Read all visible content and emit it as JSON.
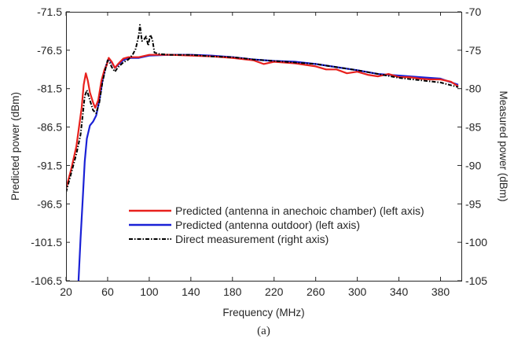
{
  "chart_data": {
    "type": "line",
    "xlabel": "Frequency (MHz)",
    "ylabel_left": "Predicted power (dBm)",
    "ylabel_right": "Measured power (dBm)",
    "caption": "(a)",
    "xlim": [
      20,
      400
    ],
    "ylim_left": [
      -106.5,
      -71.5
    ],
    "ylim_right": [
      -105,
      -70
    ],
    "x_ticks": [
      "20",
      "60",
      "100",
      "140",
      "180",
      "220",
      "260",
      "300",
      "340",
      "380"
    ],
    "y_ticks_left": [
      "-71.5",
      "-76.5",
      "-81.5",
      "-86.5",
      "-91.5",
      "-96.5",
      "-101.5",
      "-106.5"
    ],
    "y_ticks_right": [
      "-70",
      "-75",
      "-80",
      "-85",
      "-90",
      "-95",
      "-100",
      "-105"
    ],
    "grid": false,
    "legend_position": "bottom-right",
    "series": [
      {
        "name": "Predicted (antenna in anechoic chamber) (left axis)",
        "axis": "left",
        "color": "#e8211d",
        "style": "solid",
        "points": [
          [
            20,
            -94.5
          ],
          [
            25,
            -92.0
          ],
          [
            30,
            -89.0
          ],
          [
            33,
            -86.0
          ],
          [
            35,
            -84.0
          ],
          [
            37,
            -81.0
          ],
          [
            39,
            -79.5
          ],
          [
            41,
            -80.5
          ],
          [
            43,
            -82.0
          ],
          [
            46,
            -83.3
          ],
          [
            48,
            -84.0
          ],
          [
            51,
            -83.0
          ],
          [
            54,
            -80.5
          ],
          [
            57,
            -79.0
          ],
          [
            59,
            -78.5
          ],
          [
            61,
            -77.5
          ],
          [
            64,
            -78.0
          ],
          [
            67,
            -78.8
          ],
          [
            70,
            -78.3
          ],
          [
            75,
            -77.6
          ],
          [
            80,
            -77.4
          ],
          [
            90,
            -77.4
          ],
          [
            100,
            -77.1
          ],
          [
            120,
            -77.1
          ],
          [
            140,
            -77.2
          ],
          [
            160,
            -77.3
          ],
          [
            180,
            -77.5
          ],
          [
            200,
            -77.8
          ],
          [
            210,
            -78.3
          ],
          [
            220,
            -78.0
          ],
          [
            240,
            -78.2
          ],
          [
            260,
            -78.6
          ],
          [
            270,
            -79.0
          ],
          [
            280,
            -79.0
          ],
          [
            290,
            -79.5
          ],
          [
            300,
            -79.3
          ],
          [
            310,
            -79.7
          ],
          [
            320,
            -79.9
          ],
          [
            330,
            -79.6
          ],
          [
            340,
            -80.0
          ],
          [
            350,
            -80.0
          ],
          [
            360,
            -80.2
          ],
          [
            370,
            -80.3
          ],
          [
            380,
            -80.3
          ],
          [
            390,
            -80.6
          ],
          [
            397,
            -81.2
          ]
        ]
      },
      {
        "name": "Predicted (antenna outdoor) (left axis)",
        "axis": "left",
        "color": "#1a21d6",
        "style": "solid",
        "points": [
          [
            32,
            -106.5
          ],
          [
            34,
            -101.0
          ],
          [
            36,
            -96.0
          ],
          [
            38,
            -91.0
          ],
          [
            40,
            -88.0
          ],
          [
            43,
            -86.3
          ],
          [
            46,
            -85.8
          ],
          [
            49,
            -85.0
          ],
          [
            52,
            -83.0
          ],
          [
            55,
            -80.5
          ],
          [
            58,
            -78.7
          ],
          [
            61,
            -77.6
          ],
          [
            64,
            -78.1
          ],
          [
            67,
            -78.8
          ],
          [
            70,
            -78.4
          ],
          [
            75,
            -77.8
          ],
          [
            80,
            -77.5
          ],
          [
            90,
            -77.5
          ],
          [
            100,
            -77.2
          ],
          [
            120,
            -77.1
          ],
          [
            140,
            -77.1
          ],
          [
            160,
            -77.2
          ],
          [
            180,
            -77.4
          ],
          [
            200,
            -77.7
          ],
          [
            220,
            -77.9
          ],
          [
            240,
            -78.0
          ],
          [
            260,
            -78.3
          ],
          [
            280,
            -78.7
          ],
          [
            300,
            -79.1
          ],
          [
            320,
            -79.6
          ],
          [
            340,
            -79.8
          ],
          [
            360,
            -80.0
          ],
          [
            380,
            -80.2
          ],
          [
            397,
            -81.0
          ]
        ]
      },
      {
        "name": "Direct measurement (right axis)",
        "axis": "right",
        "color": "#000000",
        "style": "dashed",
        "points": [
          [
            20,
            -93.5
          ],
          [
            25,
            -91.0
          ],
          [
            30,
            -88.5
          ],
          [
            34,
            -86.0
          ],
          [
            36,
            -83.5
          ],
          [
            38,
            -81.0
          ],
          [
            40,
            -80.2
          ],
          [
            43,
            -81.5
          ],
          [
            46,
            -82.8
          ],
          [
            49,
            -83.2
          ],
          [
            52,
            -81.8
          ],
          [
            55,
            -79.2
          ],
          [
            58,
            -77.4
          ],
          [
            60,
            -76.3
          ],
          [
            62,
            -76.6
          ],
          [
            64,
            -77.2
          ],
          [
            67,
            -77.8
          ],
          [
            70,
            -77.2
          ],
          [
            75,
            -76.6
          ],
          [
            80,
            -76.2
          ],
          [
            84,
            -75.6
          ],
          [
            87,
            -74.8
          ],
          [
            90,
            -73.0
          ],
          [
            91,
            -71.7
          ],
          [
            93,
            -73.8
          ],
          [
            95,
            -73.6
          ],
          [
            97,
            -73.2
          ],
          [
            99,
            -74.4
          ],
          [
            101,
            -73.0
          ],
          [
            103,
            -73.6
          ],
          [
            105,
            -75.3
          ],
          [
            110,
            -75.5
          ],
          [
            120,
            -75.6
          ],
          [
            140,
            -75.6
          ],
          [
            160,
            -75.8
          ],
          [
            180,
            -75.9
          ],
          [
            200,
            -76.2
          ],
          [
            220,
            -76.4
          ],
          [
            240,
            -76.6
          ],
          [
            260,
            -76.8
          ],
          [
            280,
            -77.2
          ],
          [
            300,
            -77.6
          ],
          [
            320,
            -78.1
          ],
          [
            340,
            -78.6
          ],
          [
            360,
            -78.9
          ],
          [
            380,
            -79.2
          ],
          [
            397,
            -79.8
          ]
        ]
      }
    ]
  }
}
